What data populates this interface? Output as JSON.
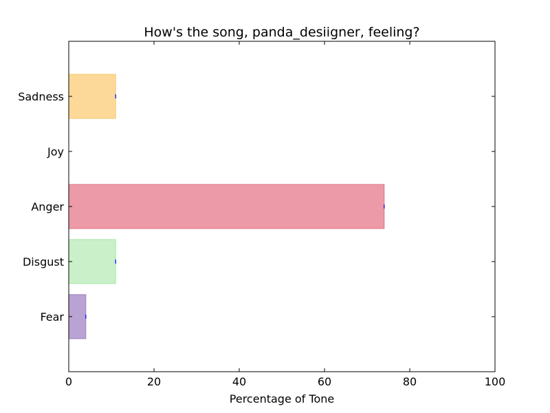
{
  "chart_data": {
    "type": "bar",
    "orientation": "horizontal",
    "title": "How's the song, panda_desiigner, feeling?",
    "xlabel": "Percentage of Tone",
    "ylabel": "",
    "xlim": [
      0,
      100
    ],
    "xticks": [
      0,
      20,
      40,
      60,
      80,
      100
    ],
    "categories": [
      "Sadness",
      "Joy",
      "Anger",
      "Disgust",
      "Fear"
    ],
    "values": [
      11,
      0,
      74,
      11,
      4
    ],
    "colors": [
      "#fdd999",
      "#f4f16e",
      "#ec9aa7",
      "#c9f0c8",
      "#b9a3d2"
    ],
    "edge_colors": [
      "#f5c66a",
      "#e8e25a",
      "#e0707f",
      "#a8e6a6",
      "#9b7ec0"
    ],
    "error_marker_color": "#0000ff",
    "grid": false,
    "legend": "none"
  }
}
